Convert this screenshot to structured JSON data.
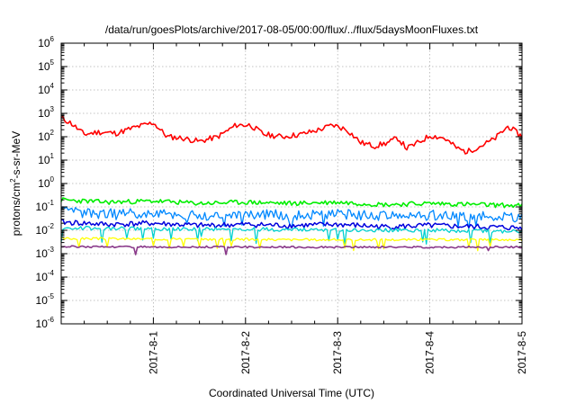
{
  "chart_data": {
    "type": "line",
    "title": "/data/run/goesPlots/archive/2017-08-05/00:00/flux/../flux/5daysMoonFluxes.txt",
    "xlabel": "Coordinated Universal Time (UTC)",
    "ylabel": "protons/cm²-s-sr-MeV",
    "ylabel_parts": {
      "pre": "protons/cm",
      "sup": "2",
      "post": "-s-sr-MeV"
    },
    "y_scale": "log",
    "ylim_exponents": [
      -6,
      6
    ],
    "y_ticks": [
      {
        "base": "10",
        "exp": "-6"
      },
      {
        "base": "10",
        "exp": "-5"
      },
      {
        "base": "10",
        "exp": "-4"
      },
      {
        "base": "10",
        "exp": "-3"
      },
      {
        "base": "10",
        "exp": "-2"
      },
      {
        "base": "10",
        "exp": "-1"
      },
      {
        "base": "10",
        "exp": "0"
      },
      {
        "base": "10",
        "exp": "1"
      },
      {
        "base": "10",
        "exp": "2"
      },
      {
        "base": "10",
        "exp": "3"
      },
      {
        "base": "10",
        "exp": "4"
      },
      {
        "base": "10",
        "exp": "5"
      },
      {
        "base": "10",
        "exp": "6"
      }
    ],
    "x_range_days": [
      "2017-07-31",
      "2017-08-05"
    ],
    "x_ticks": [
      {
        "label": "2017-8-1",
        "t": 0.2
      },
      {
        "label": "2017-8-2",
        "t": 0.4
      },
      {
        "label": "2017-8-3",
        "t": 0.6
      },
      {
        "label": "2017-8-4",
        "t": 0.8
      },
      {
        "label": "2017-8-5",
        "t": 1.0
      }
    ],
    "grid": true,
    "series": [
      {
        "color": "#ff0000",
        "width": 1.6,
        "seed": 11,
        "noise": 0.12,
        "spikes": 0.0,
        "spike_depth": 0,
        "points": [
          [
            0.0,
            2.8
          ],
          [
            0.02,
            2.6
          ],
          [
            0.05,
            2.1
          ],
          [
            0.08,
            2.2
          ],
          [
            0.12,
            2.15
          ],
          [
            0.16,
            2.4
          ],
          [
            0.2,
            2.6
          ],
          [
            0.23,
            2.0
          ],
          [
            0.26,
            1.95
          ],
          [
            0.3,
            1.8
          ],
          [
            0.34,
            2.0
          ],
          [
            0.38,
            2.5
          ],
          [
            0.41,
            2.5
          ],
          [
            0.44,
            2.1
          ],
          [
            0.48,
            2.0
          ],
          [
            0.52,
            2.1
          ],
          [
            0.56,
            2.3
          ],
          [
            0.59,
            2.5
          ],
          [
            0.62,
            2.3
          ],
          [
            0.65,
            1.75
          ],
          [
            0.68,
            1.6
          ],
          [
            0.71,
            1.75
          ],
          [
            0.73,
            1.95
          ],
          [
            0.75,
            1.5
          ],
          [
            0.78,
            1.8
          ],
          [
            0.8,
            2.05
          ],
          [
            0.83,
            1.95
          ],
          [
            0.86,
            1.5
          ],
          [
            0.88,
            1.35
          ],
          [
            0.91,
            1.6
          ],
          [
            0.94,
            1.9
          ],
          [
            0.97,
            2.45
          ],
          [
            1.0,
            2.0
          ]
        ]
      },
      {
        "color": "#00ee00",
        "width": 1.6,
        "seed": 23,
        "noise": 0.1,
        "spikes": 0.0,
        "spike_depth": 0,
        "points": [
          [
            0.0,
            -0.7
          ],
          [
            0.1,
            -0.8
          ],
          [
            0.2,
            -0.75
          ],
          [
            0.3,
            -0.85
          ],
          [
            0.4,
            -0.8
          ],
          [
            0.5,
            -0.85
          ],
          [
            0.6,
            -0.8
          ],
          [
            0.7,
            -0.9
          ],
          [
            0.8,
            -0.85
          ],
          [
            0.9,
            -0.9
          ],
          [
            1.0,
            -0.95
          ]
        ]
      },
      {
        "color": "#0088ff",
        "width": 1.3,
        "seed": 37,
        "noise": 0.22,
        "spikes": 0.04,
        "spike_depth": 0.5,
        "points": [
          [
            0.0,
            -1.2
          ],
          [
            0.1,
            -1.3
          ],
          [
            0.2,
            -1.25
          ],
          [
            0.3,
            -1.4
          ],
          [
            0.4,
            -1.3
          ],
          [
            0.5,
            -1.35
          ],
          [
            0.6,
            -1.3
          ],
          [
            0.7,
            -1.4
          ],
          [
            0.8,
            -1.35
          ],
          [
            0.9,
            -1.4
          ],
          [
            1.0,
            -1.45
          ]
        ]
      },
      {
        "color": "#0000dd",
        "width": 1.5,
        "seed": 41,
        "noise": 0.12,
        "spikes": 0.0,
        "spike_depth": 0,
        "points": [
          [
            0.0,
            -1.65
          ],
          [
            0.1,
            -1.75
          ],
          [
            0.2,
            -1.7
          ],
          [
            0.3,
            -1.8
          ],
          [
            0.4,
            -1.75
          ],
          [
            0.5,
            -1.8
          ],
          [
            0.6,
            -1.75
          ],
          [
            0.7,
            -1.85
          ],
          [
            0.8,
            -1.8
          ],
          [
            0.9,
            -1.85
          ],
          [
            1.0,
            -1.9
          ]
        ]
      },
      {
        "color": "#00d0d0",
        "width": 1.3,
        "seed": 53,
        "noise": 0.08,
        "spikes": 0.05,
        "spike_depth": 0.55,
        "points": [
          [
            0.0,
            -1.9
          ],
          [
            0.2,
            -1.95
          ],
          [
            0.4,
            -1.95
          ],
          [
            0.6,
            -2.0
          ],
          [
            0.8,
            -2.0
          ],
          [
            1.0,
            -2.05
          ]
        ]
      },
      {
        "color": "#ffff00",
        "width": 1.3,
        "seed": 67,
        "noise": 0.05,
        "spikes": 0.05,
        "spike_depth": 0.4,
        "points": [
          [
            0.0,
            -2.35
          ],
          [
            0.5,
            -2.4
          ],
          [
            1.0,
            -2.4
          ]
        ]
      },
      {
        "color": "#8a3a8a",
        "width": 1.6,
        "seed": 79,
        "noise": 0.04,
        "spikes": 0.025,
        "spike_depth": 0.3,
        "points": [
          [
            0.0,
            -2.7
          ],
          [
            0.5,
            -2.72
          ],
          [
            1.0,
            -2.72
          ]
        ]
      }
    ]
  }
}
